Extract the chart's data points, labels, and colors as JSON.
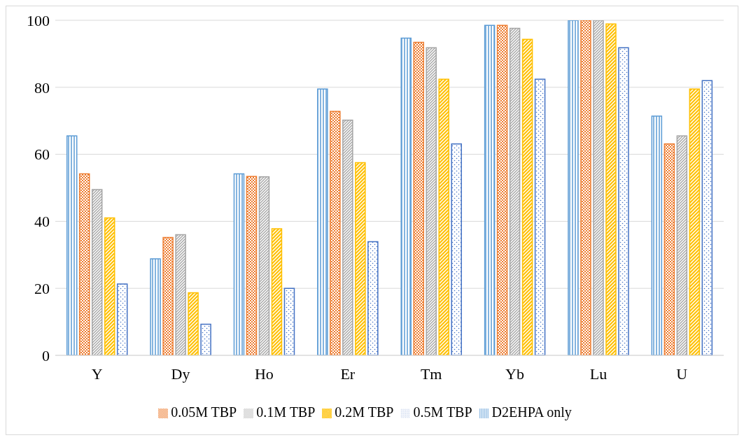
{
  "chart_data": {
    "type": "bar",
    "categories": [
      "Y",
      "Dy",
      "Ho",
      "Er",
      "Tm",
      "Yb",
      "Lu",
      "U"
    ],
    "series": [
      {
        "name": "D2EHPA only",
        "color": "#5b9bd5",
        "values": [
          65.5,
          28.8,
          54.2,
          79.5,
          94.7,
          98.5,
          100,
          71.4
        ]
      },
      {
        "name": "0.05M TBP",
        "color": "#ed7d31",
        "values": [
          54.2,
          35.2,
          53.4,
          72.8,
          93.4,
          98.5,
          100,
          63.1
        ]
      },
      {
        "name": "0.1M TBP",
        "color": "#a5a5a5",
        "values": [
          49.5,
          36,
          53.3,
          70.2,
          91.8,
          97.6,
          100,
          65.5
        ]
      },
      {
        "name": "0.2M TBP",
        "color": "#ffc000",
        "values": [
          41,
          18.7,
          37.8,
          57.5,
          82.4,
          94.3,
          98.9,
          79.5
        ]
      },
      {
        "name": "0.5M TBP",
        "color": "#4472c4",
        "values": [
          21.3,
          9.3,
          20,
          33.9,
          63.1,
          82.4,
          91.8,
          82
        ]
      }
    ],
    "ylim": [
      0,
      100
    ],
    "yticks": [
      0,
      20,
      40,
      60,
      80,
      100
    ],
    "grid": "y",
    "legend": "bottom"
  }
}
